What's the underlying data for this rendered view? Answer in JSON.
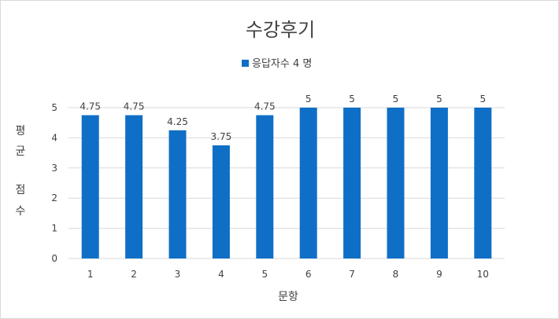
{
  "chart_data": {
    "type": "bar",
    "title": "수강후기",
    "categories": [
      "1",
      "2",
      "3",
      "4",
      "5",
      "6",
      "7",
      "8",
      "9",
      "10"
    ],
    "series": [
      {
        "name": "응답자수 4 명",
        "color": "#0f6fc6",
        "values": [
          4.75,
          4.75,
          4.25,
          3.75,
          4.75,
          5,
          5,
          5,
          5,
          5
        ],
        "labels": [
          "4.75",
          "4.75",
          "4.25",
          "3.75",
          "4.75",
          "5",
          "5",
          "5",
          "5",
          "5"
        ]
      }
    ],
    "xlabel": "문항",
    "ylabel_lines": [
      "평",
      "균",
      "점",
      "수"
    ],
    "ylim": [
      0,
      5
    ],
    "yticks": [
      "0",
      "1",
      "2",
      "3",
      "4",
      "5"
    ],
    "grid": true,
    "legend_position": "top"
  }
}
